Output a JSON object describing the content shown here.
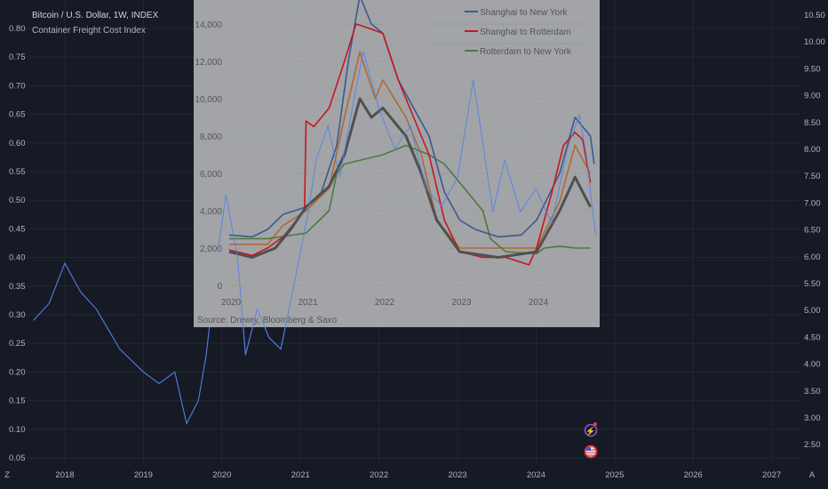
{
  "header": {
    "symbol_title": "Bitcoin / U.S. Dollar, 1W, INDEX",
    "indicator_title": "Container Freight Cost Index"
  },
  "colors": {
    "background": "#161a25",
    "main_line": "#4f7fe6",
    "inset_bg": "#a7a9ac",
    "shanghai_ny": "#3d5a8c",
    "shanghai_rotterdam": "#c8161d",
    "rotterdam_ny": "#4e7a3a",
    "composite": "#505050",
    "orange_series": "#b06a30"
  },
  "icons": [
    "tradingview-logo-icon",
    "lightning-event-icon",
    "us-flag-event-icon",
    "auto-scale-icon"
  ],
  "auto_scale_label": "A",
  "chart_data": [
    {
      "type": "line",
      "title": "Bitcoin / U.S. Dollar, 1W, INDEX",
      "subtitle": "Container Freight Cost Index",
      "x_ticks": [
        "2018",
        "2019",
        "2020",
        "2021",
        "2022",
        "2023",
        "2024",
        "2025",
        "2026",
        "2027"
      ],
      "left_y_ticks": [
        "0.80",
        "0.75",
        "0.70",
        "0.65",
        "0.60",
        "0.55",
        "0.50",
        "0.45",
        "0.40",
        "0.35",
        "0.30",
        "0.25",
        "0.20",
        "0.15",
        "0.10",
        "0.05"
      ],
      "right_y_ticks": [
        "10.50",
        "10.00",
        "9.50",
        "9.00",
        "8.50",
        "8.00",
        "7.50",
        "7.00",
        "6.50",
        "6.00",
        "5.50",
        "5.00",
        "4.50",
        "4.00",
        "3.50",
        "3.00",
        "2.50"
      ],
      "left_ylim": [
        0.05,
        0.8
      ],
      "right_ylim": [
        2.5,
        10.5
      ],
      "grid": true,
      "x": [
        2017.6,
        2017.8,
        2018.0,
        2018.2,
        2018.4,
        2018.7,
        2019.0,
        2019.2,
        2019.4,
        2019.55,
        2019.7,
        2019.8,
        2019.95,
        2020.05,
        2020.2,
        2020.3,
        2020.45,
        2020.6,
        2020.75,
        2020.9,
        2021.0,
        2021.1,
        2021.2,
        2021.35,
        2021.5,
        2021.7,
        2021.8,
        2022.0,
        2022.2,
        2022.4,
        2022.6,
        2022.8,
        2023.0,
        2023.2,
        2023.3,
        2023.45,
        2023.6,
        2023.8,
        2024.0,
        2024.2,
        2024.4,
        2024.55,
        2024.65,
        2024.72,
        2024.76
      ],
      "y": [
        0.29,
        0.32,
        0.39,
        0.34,
        0.31,
        0.24,
        0.2,
        0.18,
        0.2,
        0.11,
        0.15,
        0.23,
        0.41,
        0.51,
        0.4,
        0.23,
        0.31,
        0.26,
        0.24,
        0.34,
        0.41,
        0.48,
        0.57,
        0.63,
        0.54,
        0.69,
        0.76,
        0.66,
        0.59,
        0.63,
        0.52,
        0.49,
        0.54,
        0.71,
        0.62,
        0.48,
        0.57,
        0.48,
        0.52,
        0.46,
        0.59,
        0.65,
        0.57,
        0.48,
        0.44
      ]
    },
    {
      "type": "line",
      "source": "Source: Drewry, Bloomberg & Saxo",
      "x_ticks": [
        "2020",
        "2021",
        "2022",
        "2023",
        "2024"
      ],
      "y_ticks": [
        "0",
        "2,000",
        "4,000",
        "6,000",
        "8,000",
        "10,000",
        "12,000",
        "14,000"
      ],
      "ylim": [
        0,
        15500
      ],
      "legend_position": "top-right",
      "grid": true,
      "series": [
        {
          "name": "Shanghai to New York",
          "color_key": "shanghai_ny",
          "x": [
            2020.0,
            2020.3,
            2020.5,
            2020.7,
            2021.0,
            2021.2,
            2021.4,
            2021.55,
            2021.7,
            2021.85,
            2022.0,
            2022.2,
            2022.4,
            2022.6,
            2022.8,
            2023.0,
            2023.2,
            2023.5,
            2023.8,
            2024.0,
            2024.3,
            2024.5,
            2024.6,
            2024.7,
            2024.75
          ],
          "y": [
            2700,
            2600,
            3000,
            3800,
            4200,
            5000,
            7500,
            12000,
            15500,
            14000,
            13500,
            11000,
            9500,
            8000,
            5000,
            3500,
            3000,
            2600,
            2700,
            3500,
            6000,
            9000,
            8500,
            8000,
            6500
          ]
        },
        {
          "name": "Shanghai to Rotterdam",
          "color_key": "shanghai_rotterdam",
          "x": [
            2020.0,
            2020.3,
            2020.5,
            2020.7,
            2020.98,
            2021.0,
            2021.1,
            2021.3,
            2021.5,
            2021.65,
            2021.8,
            2022.0,
            2022.2,
            2022.4,
            2022.6,
            2022.8,
            2023.0,
            2023.3,
            2023.6,
            2023.9,
            2024.0,
            2024.2,
            2024.35,
            2024.5,
            2024.6,
            2024.7
          ],
          "y": [
            1900,
            1600,
            2000,
            2600,
            4000,
            8800,
            8500,
            9500,
            12000,
            14000,
            13800,
            13500,
            11000,
            9000,
            7000,
            3500,
            1800,
            1500,
            1500,
            1100,
            2000,
            5000,
            7500,
            8200,
            7800,
            5500
          ]
        },
        {
          "name": "Rotterdam to New York",
          "color_key": "rotterdam_ny",
          "x": [
            2020.0,
            2020.5,
            2021.0,
            2021.3,
            2021.4,
            2021.5,
            2022.0,
            2022.3,
            2022.6,
            2022.8,
            2023.0,
            2023.3,
            2023.4,
            2023.6,
            2024.0,
            2024.1,
            2024.3,
            2024.5,
            2024.7
          ],
          "y": [
            2500,
            2500,
            2800,
            4000,
            6000,
            6500,
            7000,
            7500,
            7000,
            6500,
            5500,
            4000,
            2500,
            1800,
            1700,
            2000,
            2100,
            2000,
            2000
          ]
        },
        {
          "color_key": "composite",
          "x": [
            2020.0,
            2020.3,
            2020.6,
            2020.8,
            2021.0,
            2021.3,
            2021.5,
            2021.7,
            2021.85,
            2022.0,
            2022.3,
            2022.5,
            2022.7,
            2023.0,
            2023.5,
            2024.0,
            2024.3,
            2024.5,
            2024.7
          ],
          "y": [
            1800,
            1500,
            2000,
            3000,
            4200,
            5300,
            7000,
            10000,
            9000,
            9500,
            8000,
            6000,
            3500,
            1800,
            1500,
            1800,
            4000,
            5800,
            4200
          ]
        },
        {
          "color_key": "orange_series",
          "x": [
            2020.0,
            2020.5,
            2020.7,
            2021.0,
            2021.3,
            2021.5,
            2021.7,
            2021.9,
            2022.0,
            2022.3,
            2022.5,
            2022.7,
            2023.0,
            2023.5,
            2024.0,
            2024.3,
            2024.5,
            2024.7
          ],
          "y": [
            2200,
            2200,
            3200,
            4000,
            5200,
            9000,
            12500,
            10000,
            11000,
            9000,
            7000,
            3500,
            2000,
            2000,
            2000,
            4500,
            7500,
            6000
          ]
        }
      ]
    }
  ]
}
